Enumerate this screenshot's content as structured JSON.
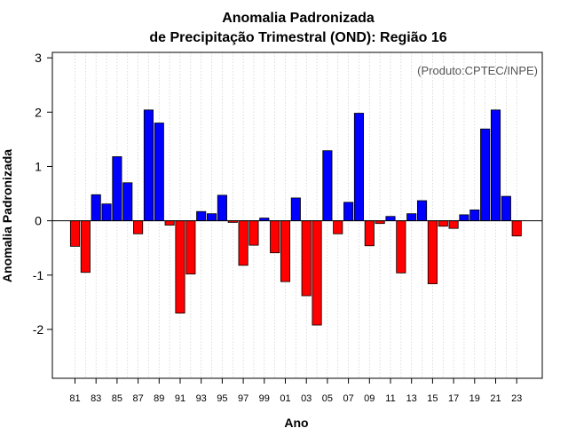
{
  "chart_data": {
    "type": "bar",
    "title": "Anomalia Padronizada",
    "subtitle": "de Precipitação Trimestral (OND): Região 16",
    "xlabel": "Ano",
    "ylabel": "Anomalia Padronizada",
    "credit": "(Produto:CPTEC/INPE)",
    "ylim": [
      -2.9,
      3.1
    ],
    "yticks": [
      -2,
      -1,
      0,
      1,
      2,
      3
    ],
    "ytick_labels": [
      "-2",
      "-1",
      "0",
      "1",
      "2",
      "3"
    ],
    "categories": [
      "81",
      "82",
      "83",
      "84",
      "85",
      "86",
      "87",
      "88",
      "89",
      "90",
      "91",
      "92",
      "93",
      "94",
      "95",
      "96",
      "97",
      "98",
      "99",
      "00",
      "01",
      "02",
      "03",
      "04",
      "05",
      "06",
      "07",
      "08",
      "09",
      "10",
      "11",
      "12",
      "13",
      "14",
      "15",
      "16",
      "17",
      "18",
      "19",
      "20",
      "21",
      "22",
      "23"
    ],
    "xtick_labels": [
      "81",
      "83",
      "85",
      "87",
      "89",
      "91",
      "93",
      "95",
      "97",
      "99",
      "01",
      "03",
      "05",
      "07",
      "09",
      "11",
      "13",
      "15",
      "17",
      "19",
      "21",
      "23"
    ],
    "values": [
      -0.47,
      -0.95,
      0.48,
      0.31,
      1.18,
      0.7,
      -0.24,
      2.04,
      1.8,
      -0.08,
      -1.7,
      -0.98,
      0.17,
      0.13,
      0.47,
      -0.03,
      -0.82,
      -0.45,
      0.05,
      -0.59,
      -1.12,
      0.42,
      -1.38,
      -1.92,
      1.29,
      -0.24,
      0.34,
      1.98,
      -0.46,
      -0.05,
      0.08,
      -0.96,
      0.13,
      0.37,
      -1.16,
      -0.1,
      -0.14,
      0.11,
      0.2,
      1.69,
      2.04,
      0.45,
      -0.28
    ],
    "colors": {
      "positive": "#0000ff",
      "negative": "#ff0000",
      "grid": "#cccccc"
    }
  }
}
